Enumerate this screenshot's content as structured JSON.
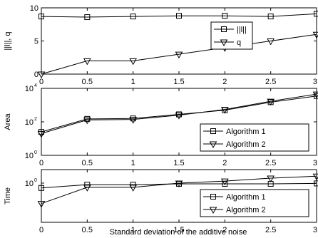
{
  "figure": {
    "xlabel": "Standard deviation of the additive noise"
  },
  "chart_data": [
    {
      "type": "line",
      "ylabel": "||l||, q",
      "yscale": "linear",
      "xlim": [
        0,
        3
      ],
      "ylim": [
        0,
        10
      ],
      "x_ticks": [
        "0",
        "0.5",
        "1",
        "1.5",
        "2",
        "2.5",
        "3"
      ],
      "y_ticks": [
        "0",
        "5",
        "10"
      ],
      "legend_position": "inside-center-right",
      "x": [
        0,
        0.5,
        1,
        1.5,
        2,
        2.5,
        3
      ],
      "series": [
        {
          "name": "||l||",
          "marker": "square",
          "values": [
            8.7,
            8.6,
            8.7,
            8.8,
            8.8,
            8.7,
            9.1
          ]
        },
        {
          "name": "q",
          "marker": "triangle-down",
          "values": [
            0,
            2,
            2,
            3,
            4,
            5,
            6
          ]
        }
      ]
    },
    {
      "type": "line",
      "ylabel": "Area",
      "yscale": "log",
      "xlim": [
        0,
        3
      ],
      "ylim": [
        1,
        10000
      ],
      "x_ticks": [
        "0",
        "0.5",
        "1",
        "1.5",
        "2",
        "2.5",
        "3"
      ],
      "y_ticks": [
        {
          "base": "10",
          "exp": "0"
        },
        {
          "base": "10",
          "exp": "2"
        },
        {
          "base": "10",
          "exp": "4"
        }
      ],
      "legend_position": "bottom-right",
      "x": [
        0,
        0.5,
        1,
        1.5,
        2,
        2.5,
        3
      ],
      "series": [
        {
          "name": "Algorithm 1",
          "marker": "square",
          "values": [
            25,
            150,
            160,
            280,
            500,
            1500,
            3500
          ]
        },
        {
          "name": "Algorithm 2",
          "marker": "triangle-down",
          "values": [
            20,
            130,
            140,
            250,
            550,
            1700,
            4500
          ]
        }
      ]
    },
    {
      "type": "line",
      "ylabel": "Time",
      "yscale": "log",
      "xlim": [
        0,
        3
      ],
      "ylim": [
        0.07,
        2.5
      ],
      "x_ticks": [
        "0",
        "0.5",
        "1",
        "1.5",
        "2",
        "2.5",
        "3"
      ],
      "y_ticks": [
        {
          "base": "10",
          "exp": "0"
        }
      ],
      "legend_position": "bottom-right",
      "x": [
        0,
        0.5,
        1,
        1.5,
        2,
        2.5,
        3
      ],
      "series": [
        {
          "name": "Algorithm 1",
          "marker": "square",
          "values": [
            0.72,
            0.9,
            0.9,
            0.95,
            0.95,
            0.95,
            0.98
          ]
        },
        {
          "name": "Algorithm 2",
          "marker": "triangle-down",
          "values": [
            0.25,
            0.75,
            0.75,
            1.0,
            1.15,
            1.4,
            1.6
          ]
        }
      ]
    }
  ]
}
